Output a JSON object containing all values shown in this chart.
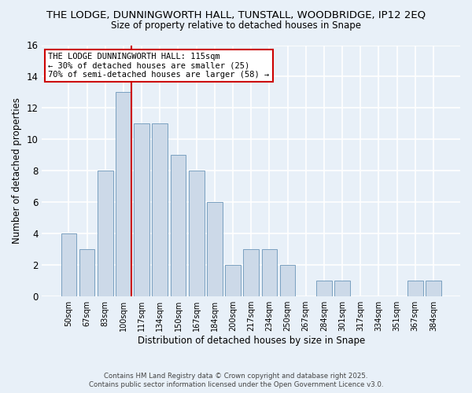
{
  "title": "THE LODGE, DUNNINGWORTH HALL, TUNSTALL, WOODBRIDGE, IP12 2EQ",
  "subtitle": "Size of property relative to detached houses in Snape",
  "xlabel": "Distribution of detached houses by size in Snape",
  "ylabel": "Number of detached properties",
  "bar_color": "#ccd9e8",
  "bar_edge_color": "#7aa0c0",
  "background_color": "#e8f0f8",
  "grid_color": "#ffffff",
  "categories": [
    "50sqm",
    "67sqm",
    "83sqm",
    "100sqm",
    "117sqm",
    "134sqm",
    "150sqm",
    "167sqm",
    "184sqm",
    "200sqm",
    "217sqm",
    "234sqm",
    "250sqm",
    "267sqm",
    "284sqm",
    "301sqm",
    "317sqm",
    "334sqm",
    "351sqm",
    "367sqm",
    "384sqm"
  ],
  "values": [
    4,
    3,
    8,
    13,
    11,
    11,
    9,
    8,
    6,
    2,
    3,
    3,
    2,
    0,
    1,
    1,
    0,
    0,
    0,
    1,
    1
  ],
  "ylim": [
    0,
    16
  ],
  "yticks": [
    0,
    2,
    4,
    6,
    8,
    10,
    12,
    14,
    16
  ],
  "vline_color": "#cc0000",
  "vline_bar_index": 3,
  "annotation_title": "THE LODGE DUNNINGWORTH HALL: 115sqm",
  "annotation_line1": "← 30% of detached houses are smaller (25)",
  "annotation_line2": "70% of semi-detached houses are larger (58) →",
  "footer1": "Contains HM Land Registry data © Crown copyright and database right 2025.",
  "footer2": "Contains public sector information licensed under the Open Government Licence v3.0."
}
